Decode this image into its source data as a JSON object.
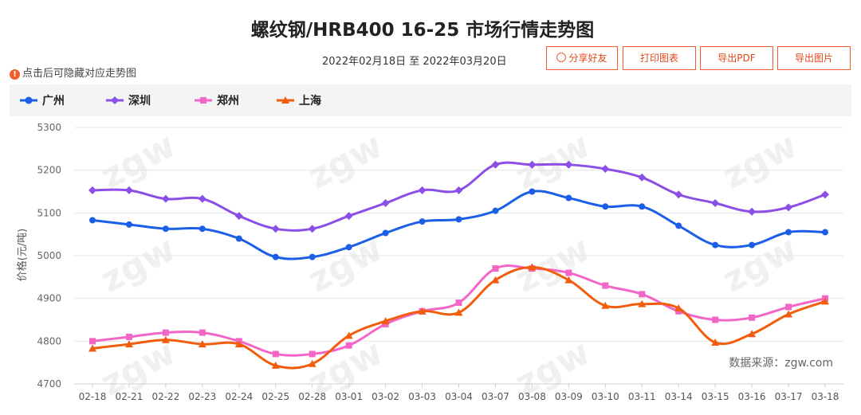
{
  "header": {
    "title": "螺纹钢/HRB400 16-25 市场行情走势图",
    "date_range": "2022年02月18日 至 2022年03月20日",
    "hint": "点击后可隐藏对应走势图"
  },
  "buttons": {
    "share": "分享好友",
    "print": "打印图表",
    "pdf": "导出PDF",
    "image": "导出图片"
  },
  "source_note": "数据来源：zgw.com",
  "chart_data": {
    "type": "line",
    "title": "螺纹钢/HRB400 16-25 市场行情走势图",
    "ylabel": "价格(元/吨)",
    "ylim": [
      4700,
      5300
    ],
    "yticks": [
      4700,
      4800,
      4900,
      5000,
      5100,
      5200,
      5300
    ],
    "grid": true,
    "legend_position": "top",
    "categories": [
      "02-18",
      "02-21",
      "02-22",
      "02-23",
      "02-24",
      "02-25",
      "02-28",
      "03-01",
      "03-02",
      "03-03",
      "03-04",
      "03-07",
      "03-08",
      "03-09",
      "03-10",
      "03-11",
      "03-14",
      "03-15",
      "03-16",
      "03-17",
      "03-18"
    ],
    "series": [
      {
        "name": "广州",
        "color": "#1b5fe8",
        "marker": "circle",
        "values": [
          5083,
          5073,
          5063,
          5063,
          5040,
          4997,
          4997,
          5020,
          5053,
          5080,
          5085,
          5105,
          5150,
          5135,
          5115,
          5115,
          5070,
          5025,
          5025,
          5055,
          5055
        ]
      },
      {
        "name": "深圳",
        "color": "#8b4ee6",
        "marker": "diamond",
        "values": [
          5153,
          5153,
          5133,
          5133,
          5093,
          5063,
          5063,
          5093,
          5123,
          5153,
          5153,
          5213,
          5213,
          5213,
          5203,
          5183,
          5143,
          5123,
          5103,
          5113,
          5143
        ]
      },
      {
        "name": "郑州",
        "color": "#f266c8",
        "marker": "square",
        "values": [
          4800,
          4810,
          4820,
          4820,
          4800,
          4770,
          4770,
          4790,
          4840,
          4870,
          4890,
          4970,
          4970,
          4960,
          4930,
          4910,
          4870,
          4850,
          4855,
          4880,
          4900
        ]
      },
      {
        "name": "上海",
        "color": "#f25d0d",
        "marker": "triangle",
        "values": [
          4783,
          4793,
          4803,
          4793,
          4793,
          4743,
          4747,
          4813,
          4847,
          4870,
          4867,
          4943,
          4973,
          4943,
          4883,
          4887,
          4877,
          4797,
          4817,
          4863,
          4893
        ]
      }
    ]
  }
}
